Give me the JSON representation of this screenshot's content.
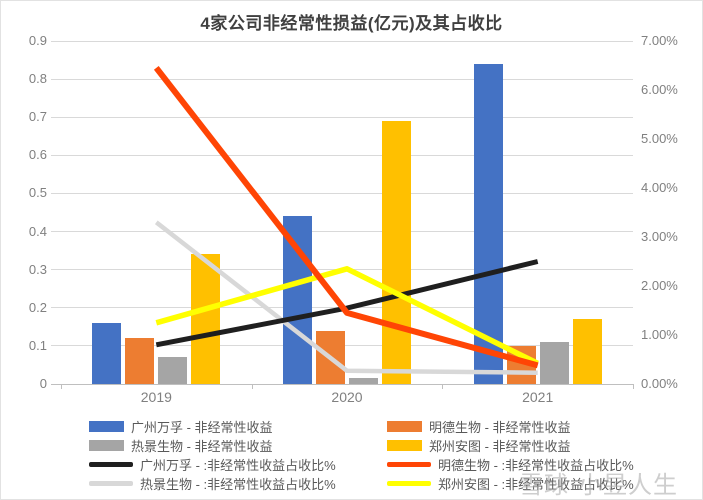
{
  "chart_data": {
    "type": "bar",
    "subtype": "combo-bar-line-dual-axis",
    "title": "4家公司非经常性损益(亿元)及其占收比",
    "categories": [
      "2019",
      "2020",
      "2021"
    ],
    "bar_unit": "亿元 (left axis)",
    "line_unit": "% of revenue (right axis)",
    "series": [
      {
        "kind": "bar",
        "name": "广州万孚 - 非经常性收益",
        "color": "#4472C4",
        "values": [
          0.16,
          0.44,
          0.84
        ]
      },
      {
        "kind": "bar",
        "name": "明德生物 - 非经常性收益",
        "color": "#ED7D31",
        "values": [
          0.12,
          0.14,
          0.1
        ]
      },
      {
        "kind": "bar",
        "name": "热景生物 - 非经常性收益",
        "color": "#A5A5A5",
        "values": [
          0.07,
          0.015,
          0.11
        ]
      },
      {
        "kind": "bar",
        "name": "郑州安图 - 非经常性收益",
        "color": "#FFC000",
        "values": [
          0.34,
          0.69,
          0.17
        ]
      },
      {
        "kind": "line",
        "name": "广州万孚 - :非经常性收益占收比%",
        "color": "#1F1F1F",
        "values": [
          0.8,
          1.55,
          2.5
        ]
      },
      {
        "kind": "line",
        "name": "明德生物 - :非经常性收益占收比%",
        "color": "#FF4505",
        "values": [
          6.45,
          1.45,
          0.38
        ]
      },
      {
        "kind": "line",
        "name": "热景生物 - :非经常性收益占收比%",
        "color": "#D8D8D8",
        "values": [
          3.3,
          0.27,
          0.23
        ]
      },
      {
        "kind": "line",
        "name": "郑州安图 - :非经常性收益占收比%",
        "color": "#FFFF00",
        "values": [
          1.25,
          2.35,
          0.42
        ]
      }
    ],
    "left_axis": {
      "min": 0,
      "max": 0.9,
      "step": 0.1,
      "tick_labels": [
        "0",
        "0.1",
        "0.2",
        "0.3",
        "0.4",
        "0.5",
        "0.6",
        "0.7",
        "0.8",
        "0.9"
      ]
    },
    "right_axis": {
      "min": 0,
      "max": 7,
      "step": 1,
      "tick_labels": [
        "0.00%",
        "1.00%",
        "2.00%",
        "3.00%",
        "4.00%",
        "5.00%",
        "6.00%",
        "7.00%"
      ]
    },
    "grid": true,
    "legend_position": "bottom, 2 columns"
  },
  "watermark": {
    "text": "雪球·小昱人生"
  }
}
